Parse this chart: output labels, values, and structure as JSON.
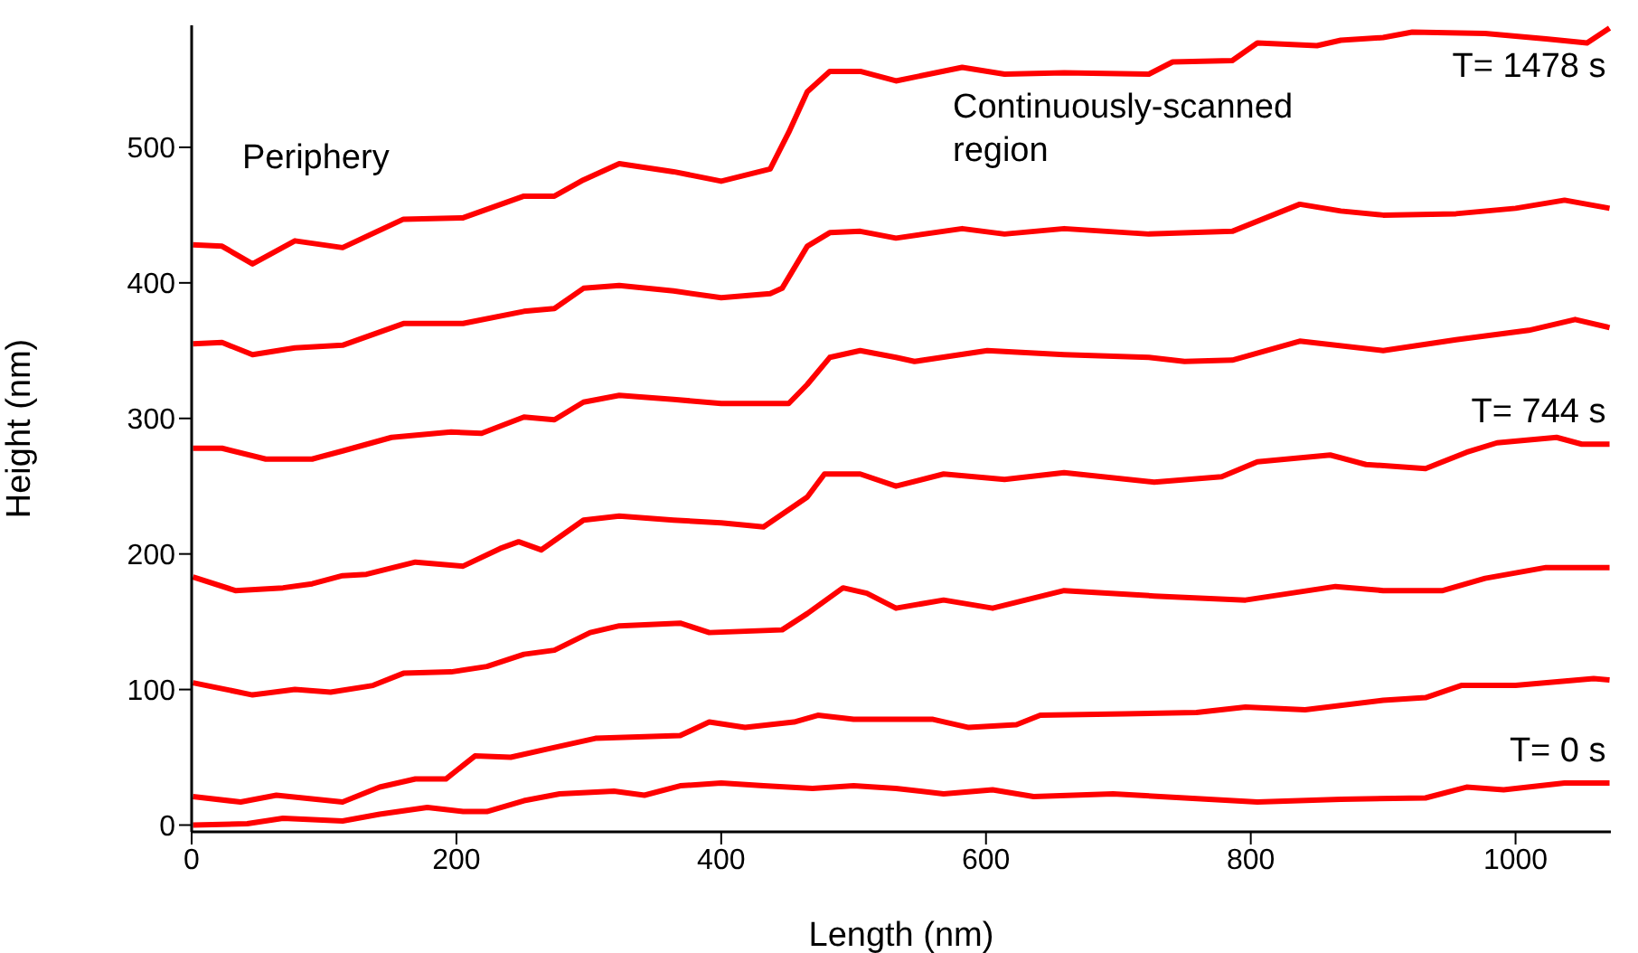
{
  "chart_data": {
    "type": "line",
    "xlabel": "Length (nm)",
    "ylabel": "Height (nm)",
    "xlim": [
      0,
      1072
    ],
    "ylim": [
      -5,
      590
    ],
    "xticks": [
      0,
      200,
      400,
      600,
      800,
      1000
    ],
    "yticks": [
      0,
      100,
      200,
      300,
      400,
      500
    ],
    "marker": "none",
    "line_style": "solid",
    "annotations": [
      "Periphery",
      "Continuously-scanned region"
    ],
    "series": [
      {
        "name": "T= 0 s",
        "color": "#ff0000",
        "x": [
          1,
          42,
          69,
          114,
          142,
          178,
          205,
          223,
          251,
          278,
          319,
          342,
          369,
          400,
          432,
          469,
          500,
          532,
          568,
          605,
          636,
          696,
          750,
          805,
          868,
          932,
          963,
          991,
          1037,
          1071
        ],
        "values": [
          0,
          1,
          5,
          3,
          8,
          13,
          10,
          10,
          18,
          23,
          25,
          22,
          29,
          31,
          29,
          27,
          29,
          27,
          23,
          26,
          21,
          23,
          20,
          17,
          19,
          20,
          28,
          26,
          31,
          31
        ]
      },
      {
        "name": null,
        "color": "#ff0000",
        "x": [
          1,
          37,
          64,
          114,
          142,
          169,
          192,
          214,
          241,
          268,
          305,
          369,
          391,
          418,
          455,
          473,
          500,
          532,
          560,
          587,
          623,
          641,
          705,
          759,
          796,
          841,
          900,
          932,
          959,
          1000,
          1059,
          1071
        ],
        "values": [
          21,
          17,
          22,
          17,
          28,
          34,
          34,
          51,
          50,
          56,
          64,
          66,
          76,
          72,
          76,
          81,
          78,
          78,
          78,
          72,
          74,
          81,
          82,
          83,
          87,
          85,
          92,
          94,
          103,
          103,
          108,
          107
        ]
      },
      {
        "name": null,
        "color": "#ff0000",
        "x": [
          1,
          46,
          78,
          105,
          137,
          160,
          196,
          223,
          251,
          274,
          301,
          323,
          369,
          391,
          446,
          465,
          492,
          510,
          532,
          568,
          605,
          659,
          727,
          796,
          864,
          900,
          945,
          977,
          1023,
          1071
        ],
        "values": [
          105,
          96,
          100,
          98,
          103,
          112,
          113,
          117,
          126,
          129,
          142,
          147,
          149,
          142,
          144,
          156,
          175,
          171,
          160,
          166,
          160,
          173,
          169,
          166,
          176,
          173,
          173,
          182,
          190,
          190
        ]
      },
      {
        "name": "T= 744 s",
        "color": "#ff0000",
        "x": [
          1,
          33,
          69,
          91,
          114,
          132,
          169,
          205,
          233,
          247,
          264,
          296,
          323,
          364,
          400,
          432,
          465,
          478,
          505,
          532,
          568,
          614,
          659,
          727,
          778,
          805,
          860,
          887,
          932,
          963,
          986,
          1031,
          1050,
          1071
        ],
        "values": [
          183,
          173,
          175,
          178,
          184,
          185,
          194,
          191,
          204,
          209,
          203,
          225,
          228,
          225,
          223,
          220,
          242,
          259,
          259,
          250,
          259,
          255,
          260,
          253,
          257,
          268,
          273,
          266,
          263,
          275,
          282,
          286,
          281,
          281
        ]
      },
      {
        "name": null,
        "color": "#ff0000",
        "x": [
          1,
          23,
          56,
          91,
          114,
          151,
          196,
          219,
          251,
          274,
          296,
          323,
          364,
          400,
          451,
          465,
          482,
          505,
          532,
          546,
          601,
          659,
          723,
          750,
          786,
          837,
          900,
          955,
          1010,
          1045,
          1071
        ],
        "values": [
          278,
          278,
          270,
          270,
          276,
          286,
          290,
          289,
          301,
          299,
          312,
          317,
          314,
          311,
          311,
          325,
          345,
          350,
          345,
          342,
          350,
          347,
          345,
          342,
          343,
          357,
          350,
          358,
          365,
          373,
          367
        ]
      },
      {
        "name": null,
        "color": "#ff0000",
        "x": [
          1,
          23,
          46,
          78,
          114,
          160,
          205,
          251,
          274,
          296,
          323,
          364,
          400,
          437,
          446,
          465,
          482,
          505,
          532,
          582,
          614,
          659,
          723,
          786,
          837,
          868,
          900,
          955,
          1000,
          1037,
          1071
        ],
        "values": [
          355,
          356,
          347,
          352,
          354,
          370,
          370,
          379,
          381,
          396,
          398,
          394,
          389,
          392,
          396,
          427,
          437,
          438,
          433,
          440,
          436,
          440,
          436,
          438,
          458,
          453,
          450,
          451,
          455,
          461,
          455
        ]
      },
      {
        "name": "T= 1478 s",
        "color": "#ff0000",
        "x": [
          1,
          23,
          46,
          78,
          114,
          160,
          205,
          251,
          274,
          296,
          323,
          364,
          400,
          437,
          451,
          465,
          482,
          505,
          532,
          582,
          614,
          659,
          723,
          741,
          786,
          805,
          850,
          868,
          900,
          922,
          977,
          1023,
          1054,
          1071
        ],
        "values": [
          428,
          427,
          414,
          431,
          426,
          447,
          448,
          464,
          464,
          476,
          488,
          482,
          475,
          484,
          511,
          541,
          556,
          556,
          549,
          559,
          554,
          555,
          554,
          563,
          564,
          577,
          575,
          579,
          581,
          585,
          584,
          580,
          577,
          588
        ]
      }
    ]
  }
}
